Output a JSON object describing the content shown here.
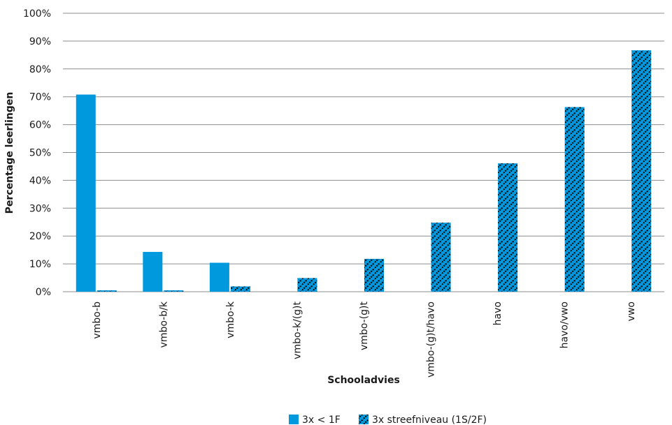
{
  "chart_data": {
    "type": "bar",
    "title": "",
    "xlabel": "Schooladvies",
    "ylabel": "Percentage leerlingen",
    "ylim": [
      0,
      100
    ],
    "yticks": [
      "0%",
      "10%",
      "20%",
      "30%",
      "40%",
      "50%",
      "60%",
      "70%",
      "80%",
      "90%",
      "100%"
    ],
    "categories": [
      "vmbo-b",
      "vmbo-b/k",
      "vmbo-k",
      "vmbo-k/(g)t",
      "vmbo-(g)t",
      "vmbo-(g)t/havo",
      "havo",
      "havo/vwo",
      "vwo"
    ],
    "series": [
      {
        "name": "3x < 1F",
        "color": "#0099dd",
        "pattern": "solid",
        "values": [
          70.8,
          14.3,
          10.4,
          null,
          null,
          null,
          null,
          null,
          null
        ]
      },
      {
        "name": "3x streefniveau (1S/2F)",
        "color": "#0099dd",
        "pattern": "hatched-black",
        "values": [
          0.5,
          0.5,
          1.9,
          4.9,
          11.8,
          24.8,
          46.1,
          66.3,
          86.7
        ]
      }
    ],
    "grid": true,
    "legend": "bottom"
  }
}
